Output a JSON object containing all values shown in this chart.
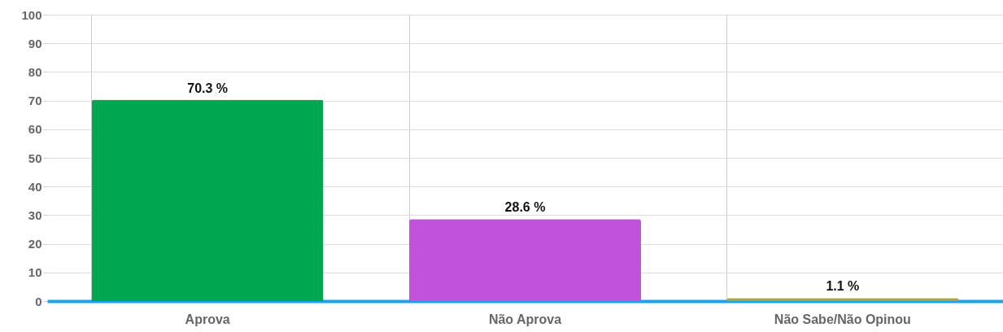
{
  "chart_data": {
    "type": "bar",
    "categories": [
      "Aprova",
      "Não Aprova",
      "Não Sabe/Não Opinou"
    ],
    "values": [
      70.3,
      28.6,
      1.1
    ],
    "colors": [
      "#00a650",
      "#c052dc",
      "#a8a83c"
    ],
    "value_labels": [
      "70.3 %",
      "28.6 %",
      "1.1 %"
    ],
    "ylim": [
      0,
      100
    ],
    "yticks": [
      0,
      10,
      20,
      30,
      40,
      50,
      60,
      70,
      80,
      90,
      100
    ],
    "grid": true
  }
}
